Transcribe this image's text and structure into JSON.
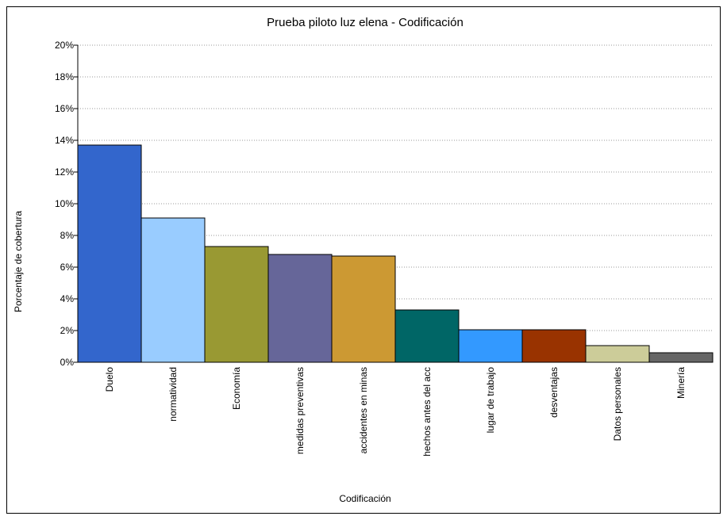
{
  "chart_data": {
    "type": "bar",
    "title": "Prueba piloto luz elena - Codificación",
    "xlabel": "Codificación",
    "ylabel": "Porcentaje de cobertura",
    "ylim": [
      0,
      20
    ],
    "yticks": [
      "0%",
      "2%",
      "4%",
      "6%",
      "8%",
      "10%",
      "12%",
      "14%",
      "16%",
      "18%",
      "20%"
    ],
    "grid": true,
    "categories": [
      "Duelo",
      "normatividad",
      "Economía",
      "medidas preventivas",
      "accidentes en minas",
      "hechos antes del acc",
      "lugar de trabajo",
      "desventajas",
      "Datos personales",
      "Minería"
    ],
    "values": [
      13.7,
      9.1,
      7.3,
      6.8,
      6.7,
      3.3,
      2.05,
      2.05,
      1.05,
      0.6
    ],
    "colors": [
      "#3366cc",
      "#99ccff",
      "#999933",
      "#666699",
      "#cc9933",
      "#006666",
      "#3399ff",
      "#993300",
      "#cccc99",
      "#666666"
    ]
  }
}
